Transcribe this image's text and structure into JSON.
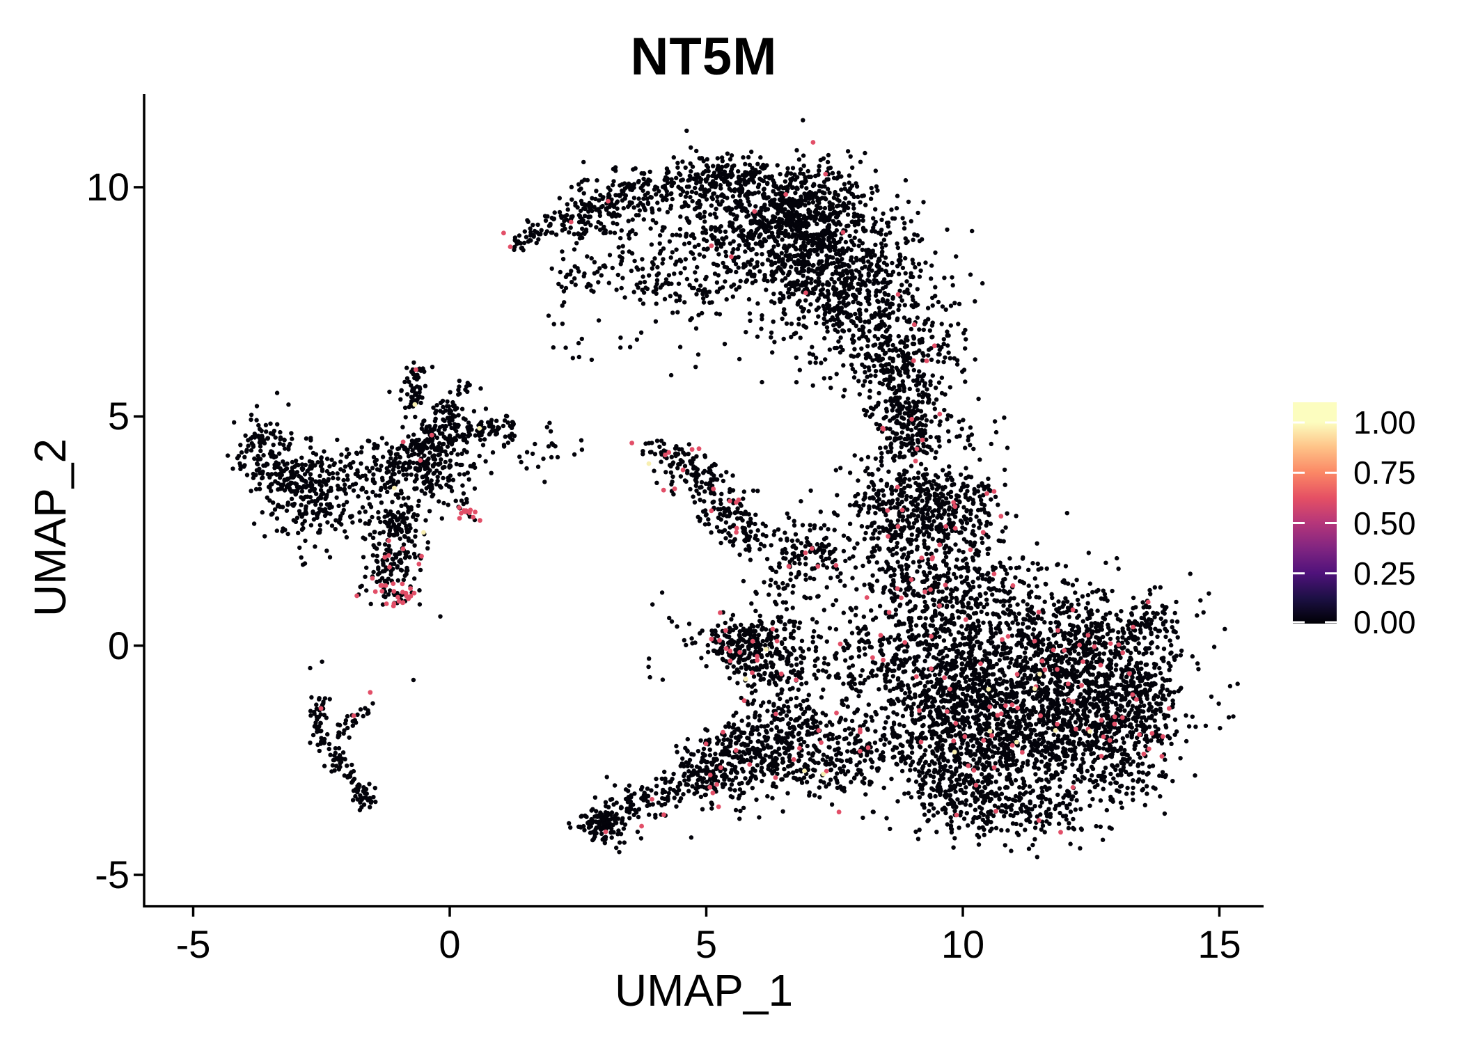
{
  "title": "NT5M",
  "axes": {
    "x": {
      "label": "UMAP_1",
      "tick_labels": [
        "-5",
        "0",
        "5",
        "10",
        "15"
      ],
      "tick_values": [
        -5,
        0,
        5,
        10,
        15
      ],
      "range": [
        -5.9,
        15.9
      ]
    },
    "y": {
      "label": "UMAP_2",
      "tick_labels": [
        "-5",
        "0",
        "5",
        "10"
      ],
      "tick_values": [
        -5,
        0,
        5,
        10
      ],
      "range": [
        -5.5,
        12.1
      ]
    }
  },
  "colorbar": {
    "tick_labels": [
      "1.00",
      "0.75",
      "0.50",
      "0.25",
      "0.00"
    ],
    "tick_values": [
      1.0,
      0.75,
      0.5,
      0.25,
      0.0
    ],
    "value_top": 1.1,
    "gradient": [
      "#000004",
      "#1c1044",
      "#4f127b",
      "#812581",
      "#b5367a",
      "#e55064",
      "#fb8765",
      "#fec287",
      "#fcfdbf"
    ]
  },
  "style": {
    "background": "#ffffff",
    "axis_color": "#000000",
    "text_color": "#000000",
    "point_color_low": "#03030a",
    "point_color_mid": "#e24f68",
    "point_color_high": "#f8efb2",
    "point_radius": 3.2
  },
  "chart_data": {
    "type": "scatter",
    "title": "NT5M",
    "xlabel": "UMAP_1",
    "ylabel": "UMAP_2",
    "xlim": [
      -5.9,
      15.9
    ],
    "ylim": [
      -5.5,
      12.1
    ],
    "legend_position": "right",
    "grid": false,
    "description": "UMAP embedding of ~10,000 single cells colored by NT5M expression (0 to 1, magma scale); most cells are near 0 (black), a few hundred mid-expression (pink-red) cells and rare high (pale-yellow) cells are scattered mainly in the right-hand and lower clusters.",
    "seed": 20240613,
    "clusters": [
      {
        "k": "s",
        "n": 60,
        "x1": 1.2,
        "y1": 8.72,
        "x2": 2.3,
        "y2": 9.35,
        "w": 0.14,
        "pm": 0.008
      },
      {
        "k": "s",
        "n": 220,
        "x1": 2.3,
        "y1": 9.3,
        "x2": 4.2,
        "y2": 10.0,
        "w": 0.3,
        "pm": 0.008
      },
      {
        "k": "s",
        "n": 270,
        "x1": 4.2,
        "y1": 10.05,
        "x2": 6.2,
        "y2": 10.15,
        "w": 0.32,
        "pm": 0.008
      },
      {
        "k": "s",
        "n": 300,
        "x1": 6.2,
        "y1": 10.0,
        "x2": 7.6,
        "y2": 9.2,
        "w": 0.45,
        "pm": 0.008
      },
      {
        "k": "g",
        "n": 800,
        "cx": 7.35,
        "cy": 8.25,
        "sx": 1.0,
        "sy": 0.9,
        "pm": 0.008,
        "ph": 0.0004
      },
      {
        "k": "g",
        "n": 280,
        "cx": 6.3,
        "cy": 9.0,
        "sx": 0.75,
        "sy": 0.55,
        "pm": 0.008
      },
      {
        "k": "g",
        "n": 260,
        "cx": 8.35,
        "cy": 6.8,
        "sx": 0.55,
        "sy": 0.75,
        "pm": 0.008
      },
      {
        "k": "g",
        "n": 60,
        "cx": 4.9,
        "cy": 8.75,
        "sx": 0.75,
        "sy": 0.45,
        "pm": 0.008
      },
      {
        "k": "s",
        "n": 120,
        "x1": 3.2,
        "y1": 8.5,
        "x2": 5.3,
        "y2": 7.45,
        "w": 0.5,
        "pm": 0.008
      },
      {
        "k": "s",
        "n": 80,
        "x1": 8.6,
        "y1": 6.2,
        "x2": 8.85,
        "y2": 5.6,
        "w": 0.3,
        "pm": 0.01
      },
      {
        "k": "g",
        "n": 40,
        "cx": 2.5,
        "cy": 8.1,
        "sx": 0.4,
        "sy": 0.5,
        "pm": 0.008
      },
      {
        "k": "s",
        "n": 200,
        "x1": 8.85,
        "y1": 5.5,
        "x2": 9.05,
        "y2": 4.2,
        "w": 0.3,
        "pm": 0.02
      },
      {
        "k": "g",
        "n": 70,
        "cx": 9.5,
        "cy": 6.5,
        "sx": 0.35,
        "sy": 0.6,
        "pm": 0.015
      },
      {
        "k": "g",
        "n": 210,
        "cx": 8.55,
        "cy": 3.1,
        "sx": 0.45,
        "sy": 0.6,
        "pm": 0.035
      },
      {
        "k": "s",
        "n": 170,
        "x1": 9.3,
        "y1": 3.6,
        "x2": 9.6,
        "y2": 2.4,
        "w": 0.45,
        "pm": 0.03
      },
      {
        "k": "g",
        "n": 120,
        "cx": 10.0,
        "cy": 2.9,
        "sx": 0.5,
        "sy": 0.5,
        "pm": 0.03
      },
      {
        "k": "g",
        "n": 240,
        "cx": 9.3,
        "cy": 1.6,
        "sx": 0.8,
        "sy": 0.55,
        "pm": 0.035
      },
      {
        "k": "g",
        "n": 30,
        "cx": 10.1,
        "cy": 4.6,
        "sx": 0.4,
        "sy": 0.7,
        "pm": 0.02
      },
      {
        "k": "g",
        "n": 1150,
        "cx": 11.1,
        "cy": -1.2,
        "sx": 1.35,
        "sy": 1.0,
        "pm": 0.035,
        "ph": 0.002
      },
      {
        "k": "g",
        "n": 480,
        "cx": 12.5,
        "cy": -1.6,
        "sx": 0.85,
        "sy": 0.8,
        "pm": 0.035,
        "ph": 0.002
      },
      {
        "k": "g",
        "n": 360,
        "cx": 10.1,
        "cy": -2.6,
        "sx": 0.95,
        "sy": 0.6,
        "pm": 0.03
      },
      {
        "k": "g",
        "n": 360,
        "cx": 12.3,
        "cy": 0.1,
        "sx": 0.95,
        "sy": 0.5,
        "pm": 0.04,
        "ph": 0.002
      },
      {
        "k": "s",
        "n": 65,
        "x1": 13.3,
        "y1": 0.35,
        "x2": 14.05,
        "y2": 0.6,
        "w": 0.22,
        "pm": 0.03
      },
      {
        "k": "g",
        "n": 320,
        "cx": 9.4,
        "cy": 0.2,
        "sx": 0.75,
        "sy": 0.75,
        "pm": 0.04
      },
      {
        "k": "g",
        "n": 360,
        "cx": 9.9,
        "cy": -1.3,
        "sx": 0.8,
        "sy": 0.75,
        "pm": 0.03,
        "ph": 0.002
      },
      {
        "k": "s",
        "n": 190,
        "x1": 9.2,
        "y1": -3.4,
        "x2": 12.3,
        "y2": -3.7,
        "w": 0.38,
        "pm": 0.025
      },
      {
        "k": "s",
        "n": 130,
        "x1": 13.55,
        "y1": -0.5,
        "x2": 13.15,
        "y2": -2.3,
        "w": 0.35,
        "pm": 0.03
      },
      {
        "k": "g",
        "n": 140,
        "cx": 10.9,
        "cy": 1.2,
        "sx": 1.1,
        "sy": 0.45,
        "pm": 0.045
      },
      {
        "k": "g",
        "n": 55,
        "cx": 13.2,
        "cy": -2.8,
        "sx": 0.4,
        "sy": 0.35,
        "pm": 0.02
      },
      {
        "k": "g",
        "n": 90,
        "cx": 8.0,
        "cy": -0.2,
        "sx": 0.5,
        "sy": 0.55,
        "pm": 0.03
      },
      {
        "k": "g",
        "n": 120,
        "cx": -3.6,
        "cy": 4.15,
        "sx": 0.3,
        "sy": 0.4,
        "pm": 0.002
      },
      {
        "k": "s",
        "n": 40,
        "x1": -3.15,
        "y1": 3.9,
        "x2": -2.95,
        "y2": 3.6,
        "w": 0.18
      },
      {
        "k": "g",
        "n": 260,
        "cx": -2.65,
        "cy": 3.25,
        "sx": 0.42,
        "sy": 0.52,
        "pm": 0.002
      },
      {
        "k": "g",
        "n": 60,
        "cx": -1.6,
        "cy": 3.7,
        "sx": 0.35,
        "sy": 0.35
      },
      {
        "k": "s",
        "n": 55,
        "x1": -0.75,
        "y1": 5.2,
        "x2": -0.62,
        "y2": 6.1,
        "w": 0.12
      },
      {
        "k": "s",
        "n": 30,
        "x1": -0.15,
        "y1": 5.0,
        "x2": 0.3,
        "y2": 5.75,
        "w": 0.12
      },
      {
        "k": "s",
        "n": 70,
        "x1": 0.0,
        "y1": 4.7,
        "x2": 1.25,
        "y2": 4.8,
        "w": 0.16
      },
      {
        "k": "g",
        "n": 280,
        "cx": -0.55,
        "cy": 3.95,
        "sx": 0.5,
        "sy": 0.45,
        "pm": 0.006
      },
      {
        "k": "s",
        "n": 190,
        "x1": -1.0,
        "y1": 2.95,
        "x2": -1.15,
        "y2": 1.35,
        "w": 0.27,
        "pm": 0.01
      },
      {
        "k": "g",
        "n": 48,
        "cx": -1.05,
        "cy": 1.12,
        "sx": 0.3,
        "sy": 0.18,
        "pm": 0.5
      },
      {
        "k": "g",
        "n": 16,
        "cx": 0.3,
        "cy": 2.88,
        "sx": 0.2,
        "sy": 0.1,
        "pm": 0.6
      },
      {
        "k": "g",
        "n": 30,
        "cx": 1.6,
        "cy": 4.35,
        "sx": 0.5,
        "sy": 0.35
      },
      {
        "k": "g",
        "n": 80,
        "cx": -0.2,
        "cy": 4.6,
        "sx": 0.3,
        "sy": 0.3
      },
      {
        "k": "s",
        "n": 190,
        "x1": 4.35,
        "y1": 4.2,
        "x2": 5.75,
        "y2": 2.5,
        "w": 0.26,
        "pm": 0.055
      },
      {
        "k": "g",
        "n": 28,
        "cx": 4.15,
        "cy": 4.3,
        "sx": 0.2,
        "sy": 0.12,
        "pm": 0.05
      },
      {
        "k": "s",
        "n": 25,
        "x1": 5.7,
        "y1": 2.45,
        "x2": 6.0,
        "y2": 2.2,
        "w": 0.2,
        "pm": 0.03
      },
      {
        "k": "g",
        "n": 120,
        "cx": 6.95,
        "cy": 2.1,
        "sx": 0.38,
        "sy": 0.33,
        "pm": 0.02
      },
      {
        "k": "g",
        "n": 55,
        "cx": 6.6,
        "cy": 1.0,
        "sx": 0.35,
        "sy": 0.55,
        "pm": 0.02
      },
      {
        "k": "g",
        "n": 250,
        "cx": 5.75,
        "cy": 0.0,
        "sx": 0.45,
        "sy": 0.32,
        "pm": 0.05,
        "ph": 0.004
      },
      {
        "k": "g",
        "n": 110,
        "cx": 6.5,
        "cy": -0.5,
        "sx": 0.5,
        "sy": 0.4,
        "pm": 0.04
      },
      {
        "k": "s",
        "n": 310,
        "x1": 6.9,
        "y1": -1.35,
        "x2": 4.75,
        "y2": -3.0,
        "w": 0.4,
        "pm": 0.03
      },
      {
        "k": "g",
        "n": 210,
        "cx": 6.3,
        "cy": -2.5,
        "sx": 0.8,
        "sy": 0.5,
        "pm": 0.04,
        "ph": 0.002
      },
      {
        "k": "g",
        "n": 170,
        "cx": 7.6,
        "cy": -2.2,
        "sx": 0.6,
        "sy": 0.6,
        "pm": 0.03
      },
      {
        "k": "g",
        "n": 130,
        "cx": 3.0,
        "cy": -3.85,
        "sx": 0.24,
        "sy": 0.2,
        "pm": 0.008
      },
      {
        "k": "s",
        "n": 85,
        "x1": 3.35,
        "y1": -3.6,
        "x2": 4.5,
        "y2": -3.1,
        "w": 0.24,
        "pm": 0.01
      },
      {
        "k": "s",
        "n": 45,
        "x1": 4.5,
        "y1": -3.05,
        "x2": 5.2,
        "y2": -2.6,
        "w": 0.3
      },
      {
        "k": "s",
        "n": 45,
        "x1": -2.55,
        "y1": -1.05,
        "x2": -2.5,
        "y2": -2.2,
        "w": 0.08
      },
      {
        "k": "s",
        "n": 28,
        "x1": -1.62,
        "y1": -1.38,
        "x2": -2.2,
        "y2": -1.95,
        "w": 0.08
      },
      {
        "k": "s",
        "n": 42,
        "x1": -2.4,
        "y1": -2.2,
        "x2": -1.75,
        "y2": -3.1,
        "w": 0.1
      },
      {
        "k": "s",
        "n": 32,
        "x1": -1.8,
        "y1": -3.1,
        "x2": -1.52,
        "y2": -3.62,
        "w": 0.12
      },
      {
        "k": "g",
        "n": 10,
        "cx": 2.2,
        "cy": 6.3,
        "sx": 0.9,
        "sy": 0.7
      },
      {
        "k": "g",
        "n": 6,
        "cx": -2.0,
        "cy": 0.2,
        "sx": 0.8,
        "sy": 0.8
      },
      {
        "k": "g",
        "n": 12,
        "cx": 4.6,
        "cy": 0.2,
        "sx": 0.5,
        "sy": 0.5,
        "pm": 0.05
      }
    ],
    "special_points": {
      "red": [
        [
          1.18,
          8.7
        ],
        [
          -0.66,
          6.02
        ],
        [
          -2.51,
          -1.37
        ],
        [
          -1.55,
          -1.02
        ],
        [
          -1.87,
          -1.53
        ],
        [
          3.04,
          -4.06
        ],
        [
          -0.6,
          1.78
        ],
        [
          -0.55,
          1.95
        ],
        [
          3.55,
          4.42
        ],
        [
          5.74,
          -1.2
        ],
        [
          9.55,
          5.05
        ],
        [
          1.05,
          9.0
        ]
      ],
      "yellow": [
        [
          -0.68,
          5.26
        ],
        [
          0.58,
          4.74
        ],
        [
          -1.08,
          3.44
        ],
        [
          -0.51,
          2.47
        ],
        [
          3.88,
          3.97
        ],
        [
          6.17,
          -0.08
        ],
        [
          5.77,
          -0.73
        ],
        [
          11.5,
          -0.62
        ],
        [
          10.5,
          -0.95
        ],
        [
          9.84,
          -2.32
        ]
      ]
    }
  }
}
